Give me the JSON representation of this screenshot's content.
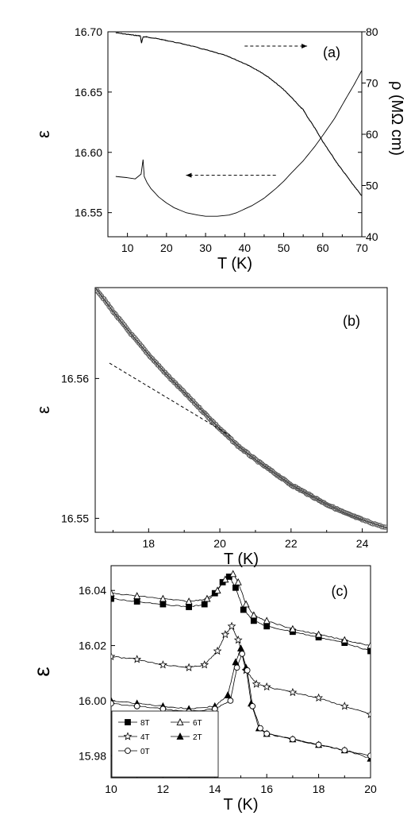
{
  "chart_data": [
    {
      "panel_label": "(a)",
      "type": "line",
      "xlabel": "T (K)",
      "ylabel": "ε",
      "y2label": "ρ (MΩ cm)",
      "xlim": [
        5,
        70
      ],
      "ylim": [
        16.53,
        16.7
      ],
      "y2lim": [
        40,
        80
      ],
      "xticks": [
        10,
        20,
        30,
        40,
        50,
        60,
        70
      ],
      "yticks": [
        16.55,
        16.6,
        16.65,
        16.7
      ],
      "y2ticks": [
        40,
        50,
        60,
        70,
        80
      ],
      "series": [
        {
          "axis": "left",
          "x": [
            7,
            10,
            12,
            13.5,
            14,
            14.3,
            15,
            16,
            18,
            20,
            22,
            25,
            28,
            30,
            33,
            36,
            38,
            40,
            42,
            45,
            48,
            50,
            52,
            55,
            58,
            60,
            63,
            66,
            68,
            70
          ],
          "y": [
            16.58,
            16.579,
            16.578,
            16.582,
            16.594,
            16.58,
            16.575,
            16.57,
            16.563,
            16.558,
            16.554,
            16.55,
            16.548,
            16.547,
            16.547,
            16.548,
            16.55,
            16.553,
            16.556,
            16.562,
            16.57,
            16.576,
            16.583,
            16.593,
            16.605,
            16.614,
            16.628,
            16.645,
            16.656,
            16.668
          ]
        },
        {
          "axis": "right",
          "x": [
            7,
            10,
            12,
            13.3,
            13.6,
            14,
            15,
            18,
            20,
            25,
            30,
            35,
            40,
            42,
            44,
            46,
            48,
            50,
            52,
            54,
            55,
            56,
            58,
            60,
            62,
            64,
            66,
            68,
            70
          ],
          "y": [
            79.8,
            79.5,
            79.3,
            79.2,
            77.8,
            79.0,
            79.0,
            78.6,
            78.3,
            77.5,
            76.5,
            75.4,
            73.8,
            73.0,
            72.2,
            71.2,
            70.0,
            68.7,
            67.2,
            65.5,
            64.8,
            63.5,
            61.2,
            58.6,
            56.3,
            54.0,
            52.0,
            49.9,
            48.0
          ]
        }
      ],
      "annotations": [
        {
          "kind": "arrow",
          "from": [
            40,
            77.2
          ],
          "to": [
            56,
            77.2
          ],
          "axis": "right",
          "style": "dashed"
        },
        {
          "kind": "arrow",
          "from": [
            48,
            16.581
          ],
          "to": [
            25,
            16.581
          ],
          "axis": "left",
          "style": "dashed"
        }
      ]
    },
    {
      "panel_label": "(b)",
      "type": "scatter",
      "xlabel": "T (K)",
      "ylabel": "ε",
      "xlim": [
        16.5,
        24.7
      ],
      "ylim": [
        16.549,
        16.5665
      ],
      "xticks": [
        18,
        20,
        22,
        24
      ],
      "yticks": [
        16.55,
        16.56
      ],
      "series": [
        {
          "x": [
            16.5,
            17.0,
            17.5,
            18.0,
            18.5,
            19.0,
            19.5,
            20.0,
            20.5,
            21.0,
            21.5,
            22.0,
            22.5,
            23.0,
            23.5,
            24.0,
            24.7
          ],
          "y": [
            16.5665,
            16.5648,
            16.5632,
            16.5617,
            16.5603,
            16.559,
            16.5577,
            16.5564,
            16.5552,
            16.5542,
            16.5533,
            16.5524,
            16.5517,
            16.551,
            16.5504,
            16.5499,
            16.5493
          ]
        }
      ],
      "annotations": [
        {
          "kind": "dashed-line",
          "from": [
            16.9,
            16.5611
          ],
          "to": [
            20.3,
            16.5559
          ]
        }
      ]
    },
    {
      "panel_label": "(c)",
      "type": "line",
      "xlabel": "T (K)",
      "ylabel": "ε",
      "xlim": [
        10,
        20
      ],
      "ylim": [
        15.972,
        16.049
      ],
      "xticks": [
        10,
        12,
        14,
        16,
        18,
        20
      ],
      "yticks": [
        15.98,
        16.0,
        16.02,
        16.04
      ],
      "legend": {
        "placement": "bottom-left",
        "columns": 2
      },
      "series": [
        {
          "name": "8T",
          "marker": "square-filled",
          "x": [
            10,
            11,
            12,
            13,
            13.6,
            14.0,
            14.3,
            14.55,
            14.8,
            15.1,
            15.5,
            16,
            17,
            18,
            19,
            20
          ],
          "y": [
            16.037,
            16.036,
            16.035,
            16.034,
            16.035,
            16.039,
            16.043,
            16.045,
            16.041,
            16.033,
            16.029,
            16.027,
            16.025,
            16.023,
            16.021,
            16.018
          ]
        },
        {
          "name": "6T",
          "marker": "triangle-open",
          "x": [
            10,
            11,
            12,
            13,
            13.7,
            14.1,
            14.4,
            14.7,
            14.9,
            15.2,
            15.5,
            16,
            17,
            18,
            19,
            20
          ],
          "y": [
            16.039,
            16.038,
            16.037,
            16.036,
            16.037,
            16.04,
            16.044,
            16.046,
            16.043,
            16.035,
            16.031,
            16.029,
            16.026,
            16.024,
            16.022,
            16.02
          ]
        },
        {
          "name": "4T",
          "marker": "star-open",
          "x": [
            10,
            11,
            12,
            13,
            13.6,
            14.1,
            14.4,
            14.65,
            14.9,
            15.2,
            15.6,
            16,
            17,
            18,
            19,
            20
          ],
          "y": [
            16.016,
            16.015,
            16.013,
            16.012,
            16.013,
            16.018,
            16.024,
            16.027,
            16.022,
            16.011,
            16.006,
            16.005,
            16.003,
            16.001,
            15.998,
            15.995
          ]
        },
        {
          "name": "2T",
          "marker": "triangle-filled",
          "x": [
            10,
            11,
            12,
            13,
            14,
            14.5,
            14.8,
            15.0,
            15.2,
            15.4,
            15.7,
            16,
            17,
            18,
            19,
            20
          ],
          "y": [
            16.0,
            15.999,
            15.998,
            15.997,
            15.998,
            16.002,
            16.014,
            16.019,
            16.012,
            15.999,
            15.99,
            15.988,
            15.986,
            15.984,
            15.982,
            15.979
          ]
        },
        {
          "name": "0T",
          "marker": "circle-open",
          "x": [
            10,
            11,
            12,
            13,
            14,
            14.6,
            14.85,
            15.05,
            15.25,
            15.45,
            15.75,
            16,
            17,
            18,
            19,
            20
          ],
          "y": [
            15.999,
            15.998,
            15.997,
            15.996,
            15.997,
            16.0,
            16.012,
            16.017,
            16.011,
            15.998,
            15.99,
            15.988,
            15.986,
            15.984,
            15.982,
            15.98
          ]
        }
      ]
    }
  ]
}
